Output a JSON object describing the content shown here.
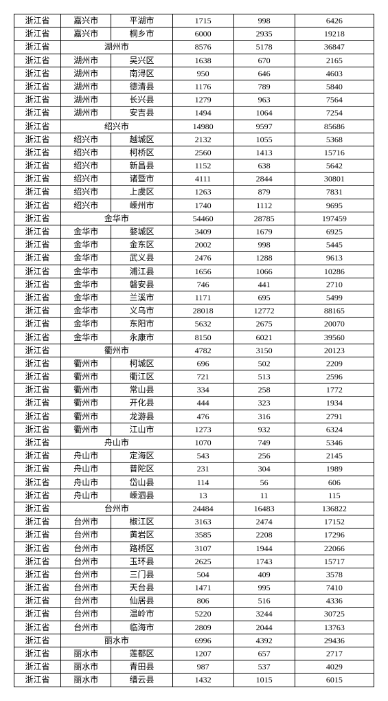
{
  "font_family": "SimSun",
  "font_size_pt": 9,
  "border_color": "#000000",
  "background_color": "#ffffff",
  "column_widths_pct": [
    13,
    14,
    17,
    17,
    17,
    22
  ],
  "rows": [
    {
      "province": "浙江省",
      "city": "嘉兴市",
      "district": "平湖市",
      "v1": "1715",
      "v2": "998",
      "v3": "6426"
    },
    {
      "province": "浙江省",
      "city": "嘉兴市",
      "district": "桐乡市",
      "v1": "6000",
      "v2": "2935",
      "v3": "19218"
    },
    {
      "province": "浙江省",
      "header": "湖州市",
      "v1": "8576",
      "v2": "5178",
      "v3": "36847"
    },
    {
      "province": "浙江省",
      "city": "湖州市",
      "district": "吴兴区",
      "v1": "1638",
      "v2": "670",
      "v3": "2165"
    },
    {
      "province": "浙江省",
      "city": "湖州市",
      "district": "南浔区",
      "v1": "950",
      "v2": "646",
      "v3": "4603"
    },
    {
      "province": "浙江省",
      "city": "湖州市",
      "district": "德清县",
      "v1": "1176",
      "v2": "789",
      "v3": "5840"
    },
    {
      "province": "浙江省",
      "city": "湖州市",
      "district": "长兴县",
      "v1": "1279",
      "v2": "963",
      "v3": "7564"
    },
    {
      "province": "浙江省",
      "city": "湖州市",
      "district": "安吉县",
      "v1": "1494",
      "v2": "1064",
      "v3": "7254"
    },
    {
      "province": "浙江省",
      "header": "绍兴市",
      "v1": "14980",
      "v2": "9597",
      "v3": "85686"
    },
    {
      "province": "浙江省",
      "city": "绍兴市",
      "district": "越城区",
      "v1": "2132",
      "v2": "1055",
      "v3": "5368"
    },
    {
      "province": "浙江省",
      "city": "绍兴市",
      "district": "柯桥区",
      "v1": "2560",
      "v2": "1413",
      "v3": "15716"
    },
    {
      "province": "浙江省",
      "city": "绍兴市",
      "district": "新昌县",
      "v1": "1152",
      "v2": "638",
      "v3": "5642"
    },
    {
      "province": "浙江省",
      "city": "绍兴市",
      "district": "诸暨市",
      "v1": "4111",
      "v2": "2844",
      "v3": "30801"
    },
    {
      "province": "浙江省",
      "city": "绍兴市",
      "district": "上虞区",
      "v1": "1263",
      "v2": "879",
      "v3": "7831"
    },
    {
      "province": "浙江省",
      "city": "绍兴市",
      "district": "嵊州市",
      "v1": "1740",
      "v2": "1112",
      "v3": "9695"
    },
    {
      "province": "浙江省",
      "header": "金华市",
      "v1": "54460",
      "v2": "28785",
      "v3": "197459"
    },
    {
      "province": "浙江省",
      "city": "金华市",
      "district": "婺城区",
      "v1": "3409",
      "v2": "1679",
      "v3": "6925"
    },
    {
      "province": "浙江省",
      "city": "金华市",
      "district": "金东区",
      "v1": "2002",
      "v2": "998",
      "v3": "5445"
    },
    {
      "province": "浙江省",
      "city": "金华市",
      "district": "武义县",
      "v1": "2476",
      "v2": "1288",
      "v3": "9613"
    },
    {
      "province": "浙江省",
      "city": "金华市",
      "district": "浦江县",
      "v1": "1656",
      "v2": "1066",
      "v3": "10286"
    },
    {
      "province": "浙江省",
      "city": "金华市",
      "district": "磐安县",
      "v1": "746",
      "v2": "441",
      "v3": "2710"
    },
    {
      "province": "浙江省",
      "city": "金华市",
      "district": "兰溪市",
      "v1": "1171",
      "v2": "695",
      "v3": "5499"
    },
    {
      "province": "浙江省",
      "city": "金华市",
      "district": "义乌市",
      "v1": "28018",
      "v2": "12772",
      "v3": "88165"
    },
    {
      "province": "浙江省",
      "city": "金华市",
      "district": "东阳市",
      "v1": "5632",
      "v2": "2675",
      "v3": "20070"
    },
    {
      "province": "浙江省",
      "city": "金华市",
      "district": "永康市",
      "v1": "8150",
      "v2": "6021",
      "v3": "39560"
    },
    {
      "province": "浙江省",
      "header": "衢州市",
      "v1": "4782",
      "v2": "3150",
      "v3": "20123"
    },
    {
      "province": "浙江省",
      "city": "衢州市",
      "district": "柯城区",
      "v1": "696",
      "v2": "502",
      "v3": "2209"
    },
    {
      "province": "浙江省",
      "city": "衢州市",
      "district": "衢江区",
      "v1": "721",
      "v2": "513",
      "v3": "2596"
    },
    {
      "province": "浙江省",
      "city": "衢州市",
      "district": "常山县",
      "v1": "334",
      "v2": "258",
      "v3": "1772"
    },
    {
      "province": "浙江省",
      "city": "衢州市",
      "district": "开化县",
      "v1": "444",
      "v2": "323",
      "v3": "1934"
    },
    {
      "province": "浙江省",
      "city": "衢州市",
      "district": "龙游县",
      "v1": "476",
      "v2": "316",
      "v3": "2791"
    },
    {
      "province": "浙江省",
      "city": "衢州市",
      "district": "江山市",
      "v1": "1273",
      "v2": "932",
      "v3": "6324"
    },
    {
      "province": "浙江省",
      "header": "舟山市",
      "v1": "1070",
      "v2": "749",
      "v3": "5346"
    },
    {
      "province": "浙江省",
      "city": "舟山市",
      "district": "定海区",
      "v1": "543",
      "v2": "256",
      "v3": "2145"
    },
    {
      "province": "浙江省",
      "city": "舟山市",
      "district": "普陀区",
      "v1": "231",
      "v2": "304",
      "v3": "1989"
    },
    {
      "province": "浙江省",
      "city": "舟山市",
      "district": "岱山县",
      "v1": "114",
      "v2": "56",
      "v3": "606"
    },
    {
      "province": "浙江省",
      "city": "舟山市",
      "district": "嵊泗县",
      "v1": "13",
      "v2": "11",
      "v3": "115"
    },
    {
      "province": "浙江省",
      "header": "台州市",
      "v1": "24484",
      "v2": "16483",
      "v3": "136822"
    },
    {
      "province": "浙江省",
      "city": "台州市",
      "district": "椒江区",
      "v1": "3163",
      "v2": "2474",
      "v3": "17152"
    },
    {
      "province": "浙江省",
      "city": "台州市",
      "district": "黄岩区",
      "v1": "3585",
      "v2": "2208",
      "v3": "17296"
    },
    {
      "province": "浙江省",
      "city": "台州市",
      "district": "路桥区",
      "v1": "3107",
      "v2": "1944",
      "v3": "22066"
    },
    {
      "province": "浙江省",
      "city": "台州市",
      "district": "玉环县",
      "v1": "2625",
      "v2": "1743",
      "v3": "15717"
    },
    {
      "province": "浙江省",
      "city": "台州市",
      "district": "三门县",
      "v1": "504",
      "v2": "409",
      "v3": "3578"
    },
    {
      "province": "浙江省",
      "city": "台州市",
      "district": "天台县",
      "v1": "1471",
      "v2": "995",
      "v3": "7410"
    },
    {
      "province": "浙江省",
      "city": "台州市",
      "district": "仙居县",
      "v1": "806",
      "v2": "516",
      "v3": "4336"
    },
    {
      "province": "浙江省",
      "city": "台州市",
      "district": "温岭市",
      "v1": "5220",
      "v2": "3244",
      "v3": "30725"
    },
    {
      "province": "浙江省",
      "city": "台州市",
      "district": "临海市",
      "v1": "2809",
      "v2": "2044",
      "v3": "13763"
    },
    {
      "province": "浙江省",
      "header": "丽水市",
      "v1": "6996",
      "v2": "4392",
      "v3": "29436"
    },
    {
      "province": "浙江省",
      "city": "丽水市",
      "district": "莲都区",
      "v1": "1207",
      "v2": "657",
      "v3": "2717"
    },
    {
      "province": "浙江省",
      "city": "丽水市",
      "district": "青田县",
      "v1": "987",
      "v2": "537",
      "v3": "4029"
    },
    {
      "province": "浙江省",
      "city": "丽水市",
      "district": "缙云县",
      "v1": "1432",
      "v2": "1015",
      "v3": "6015"
    }
  ]
}
